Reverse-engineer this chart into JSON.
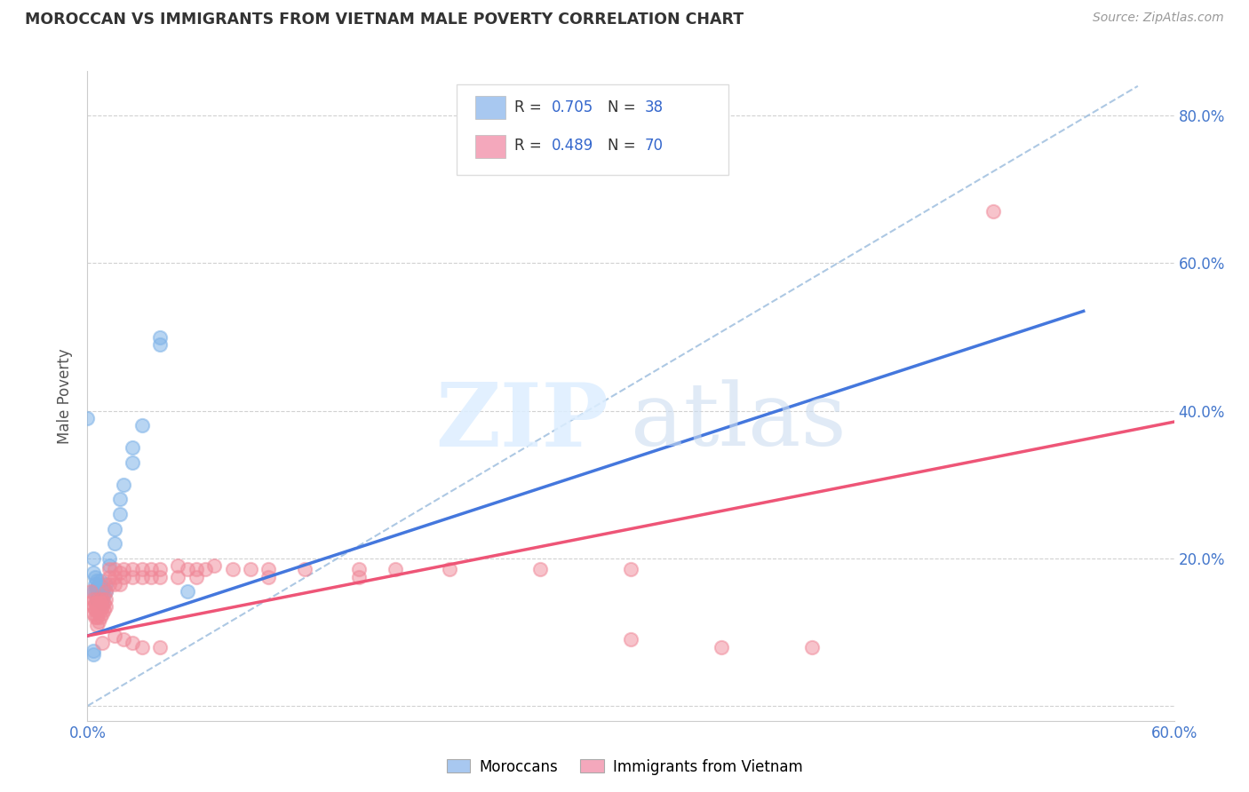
{
  "title": "MOROCCAN VS IMMIGRANTS FROM VIETNAM MALE POVERTY CORRELATION CHART",
  "source": "Source: ZipAtlas.com",
  "ylabel": "Male Poverty",
  "xlim": [
    0.0,
    0.6
  ],
  "ylim": [
    -0.02,
    0.86
  ],
  "xticks": [
    0.0,
    0.1,
    0.2,
    0.3,
    0.4,
    0.5,
    0.6
  ],
  "xtick_labels": [
    "0.0%",
    "",
    "",
    "",
    "",
    "",
    "60.0%"
  ],
  "right_ytick_values": [
    0.2,
    0.4,
    0.6,
    0.8
  ],
  "right_ytick_labels": [
    "20.0%",
    "40.0%",
    "60.0%",
    "80.0%"
  ],
  "legend_color1": "#a8c8f0",
  "legend_color2": "#f4a8bc",
  "moroccan_color": "#7fb3e8",
  "vietnam_color": "#f08898",
  "trendline_blue": "#4477dd",
  "trendline_pink": "#ee5577",
  "trendline_dashed_color": "#99bbdd",
  "watermark_zip": "ZIP",
  "watermark_atlas": "atlas",
  "blue_trend_x": [
    0.0,
    0.55
  ],
  "blue_trend_y": [
    0.095,
    0.535
  ],
  "pink_trend_x": [
    0.0,
    0.6
  ],
  "pink_trend_y": [
    0.095,
    0.385
  ],
  "dashed_trend_x": [
    0.0,
    0.58
  ],
  "dashed_trend_y": [
    0.0,
    0.84
  ],
  "moroccan_scatter": [
    [
      0.003,
      0.155
    ],
    [
      0.003,
      0.18
    ],
    [
      0.003,
      0.2
    ],
    [
      0.004,
      0.155
    ],
    [
      0.004,
      0.165
    ],
    [
      0.004,
      0.175
    ],
    [
      0.005,
      0.145
    ],
    [
      0.005,
      0.155
    ],
    [
      0.005,
      0.16
    ],
    [
      0.005,
      0.17
    ],
    [
      0.006,
      0.145
    ],
    [
      0.006,
      0.155
    ],
    [
      0.006,
      0.165
    ],
    [
      0.007,
      0.15
    ],
    [
      0.007,
      0.16
    ],
    [
      0.007,
      0.17
    ],
    [
      0.008,
      0.14
    ],
    [
      0.008,
      0.15
    ],
    [
      0.008,
      0.16
    ],
    [
      0.009,
      0.15
    ],
    [
      0.009,
      0.16
    ],
    [
      0.01,
      0.155
    ],
    [
      0.01,
      0.165
    ],
    [
      0.012,
      0.19
    ],
    [
      0.012,
      0.2
    ],
    [
      0.015,
      0.22
    ],
    [
      0.015,
      0.24
    ],
    [
      0.018,
      0.26
    ],
    [
      0.018,
      0.28
    ],
    [
      0.02,
      0.3
    ],
    [
      0.025,
      0.33
    ],
    [
      0.025,
      0.35
    ],
    [
      0.03,
      0.38
    ],
    [
      0.04,
      0.49
    ],
    [
      0.04,
      0.5
    ],
    [
      0.055,
      0.155
    ],
    [
      0.0,
      0.39
    ],
    [
      0.003,
      0.075
    ],
    [
      0.003,
      0.07
    ]
  ],
  "vietnam_scatter": [
    [
      0.002,
      0.155
    ],
    [
      0.002,
      0.14
    ],
    [
      0.003,
      0.145
    ],
    [
      0.003,
      0.135
    ],
    [
      0.003,
      0.125
    ],
    [
      0.004,
      0.14
    ],
    [
      0.004,
      0.13
    ],
    [
      0.004,
      0.12
    ],
    [
      0.005,
      0.14
    ],
    [
      0.005,
      0.13
    ],
    [
      0.005,
      0.12
    ],
    [
      0.005,
      0.11
    ],
    [
      0.006,
      0.145
    ],
    [
      0.006,
      0.135
    ],
    [
      0.006,
      0.115
    ],
    [
      0.007,
      0.14
    ],
    [
      0.007,
      0.13
    ],
    [
      0.007,
      0.12
    ],
    [
      0.008,
      0.145
    ],
    [
      0.008,
      0.135
    ],
    [
      0.008,
      0.125
    ],
    [
      0.008,
      0.085
    ],
    [
      0.009,
      0.14
    ],
    [
      0.009,
      0.13
    ],
    [
      0.01,
      0.155
    ],
    [
      0.01,
      0.145
    ],
    [
      0.01,
      0.135
    ],
    [
      0.012,
      0.185
    ],
    [
      0.012,
      0.175
    ],
    [
      0.012,
      0.165
    ],
    [
      0.015,
      0.185
    ],
    [
      0.015,
      0.175
    ],
    [
      0.015,
      0.165
    ],
    [
      0.015,
      0.095
    ],
    [
      0.018,
      0.18
    ],
    [
      0.018,
      0.165
    ],
    [
      0.02,
      0.185
    ],
    [
      0.02,
      0.175
    ],
    [
      0.02,
      0.09
    ],
    [
      0.025,
      0.185
    ],
    [
      0.025,
      0.175
    ],
    [
      0.025,
      0.085
    ],
    [
      0.03,
      0.185
    ],
    [
      0.03,
      0.175
    ],
    [
      0.03,
      0.08
    ],
    [
      0.035,
      0.185
    ],
    [
      0.035,
      0.175
    ],
    [
      0.04,
      0.185
    ],
    [
      0.04,
      0.175
    ],
    [
      0.04,
      0.08
    ],
    [
      0.05,
      0.19
    ],
    [
      0.05,
      0.175
    ],
    [
      0.055,
      0.185
    ],
    [
      0.06,
      0.185
    ],
    [
      0.06,
      0.175
    ],
    [
      0.065,
      0.185
    ],
    [
      0.07,
      0.19
    ],
    [
      0.08,
      0.185
    ],
    [
      0.09,
      0.185
    ],
    [
      0.1,
      0.185
    ],
    [
      0.1,
      0.175
    ],
    [
      0.12,
      0.185
    ],
    [
      0.15,
      0.185
    ],
    [
      0.15,
      0.175
    ],
    [
      0.17,
      0.185
    ],
    [
      0.2,
      0.185
    ],
    [
      0.25,
      0.185
    ],
    [
      0.3,
      0.185
    ],
    [
      0.3,
      0.09
    ],
    [
      0.5,
      0.67
    ],
    [
      0.35,
      0.08
    ],
    [
      0.4,
      0.08
    ]
  ]
}
